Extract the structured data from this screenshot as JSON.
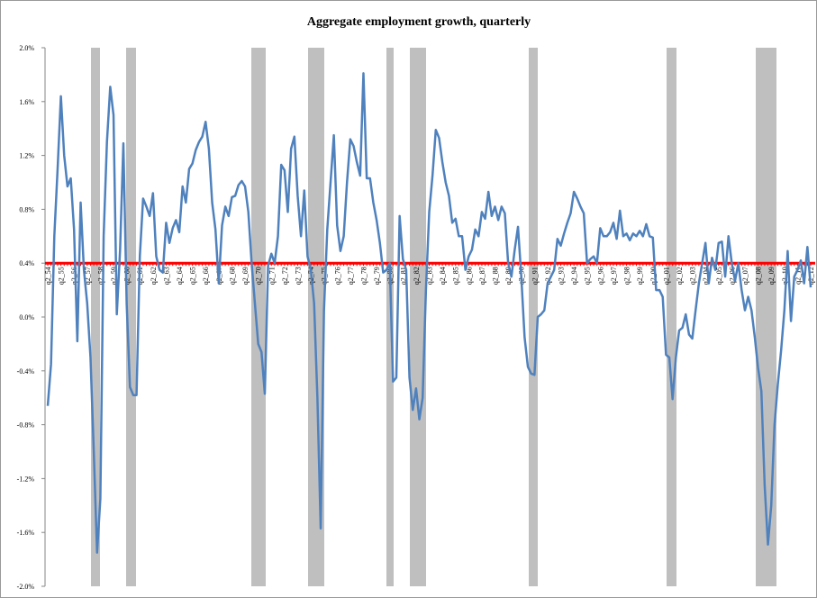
{
  "chart_data": {
    "type": "line",
    "title": "Aggregate employment growth, quarterly",
    "color": "#4f81bd",
    "reference_line": 0.4,
    "reference_color": "#ff0000",
    "ylim": [
      -2.0,
      2.0
    ],
    "yticks": [
      {
        "value": -2.0,
        "label": "-2.0%"
      },
      {
        "value": -1.6,
        "label": "-1.6%"
      },
      {
        "value": -1.2,
        "label": "-1.2%"
      },
      {
        "value": -0.8,
        "label": "-0.8%"
      },
      {
        "value": -0.4,
        "label": "-0.4%"
      },
      {
        "value": 0.0,
        "label": "0.0%"
      },
      {
        "value": 0.4,
        "label": "0.4%"
      },
      {
        "value": 0.8,
        "label": "0.8%"
      },
      {
        "value": 1.2,
        "label": "1.2%"
      },
      {
        "value": 1.6,
        "label": "1.6%"
      },
      {
        "value": 2.0,
        "label": "2.0%"
      }
    ],
    "categories": [
      "q2_54",
      null,
      null,
      null,
      "q2_55",
      null,
      null,
      null,
      "q2_56",
      null,
      null,
      null,
      "q2_57",
      null,
      null,
      null,
      "q2_58",
      null,
      null,
      null,
      "q2_59",
      null,
      null,
      null,
      "q2_60",
      null,
      null,
      null,
      "q2_61",
      null,
      null,
      null,
      "q2_62",
      null,
      null,
      null,
      "q2_63",
      null,
      null,
      null,
      "q2_64",
      null,
      null,
      null,
      "q2_65",
      null,
      null,
      null,
      "q2_66",
      null,
      null,
      null,
      "q2_67",
      null,
      null,
      null,
      "q2_68",
      null,
      null,
      null,
      "q2_69",
      null,
      null,
      null,
      "q2_70",
      null,
      null,
      null,
      "q2_71",
      null,
      null,
      null,
      "q2_72",
      null,
      null,
      null,
      "q2_73",
      null,
      null,
      null,
      "q2_74",
      null,
      null,
      null,
      "q2_75",
      null,
      null,
      null,
      "q2_76",
      null,
      null,
      null,
      "q2_77",
      null,
      null,
      null,
      "q2_78",
      null,
      null,
      null,
      "q2_79",
      null,
      null,
      null,
      "q2_80",
      null,
      null,
      null,
      "q2_81",
      null,
      null,
      null,
      "q2_82",
      null,
      null,
      null,
      "q2_83",
      null,
      null,
      null,
      "q2_84",
      null,
      null,
      null,
      "q2_85",
      null,
      null,
      null,
      "q2_86",
      null,
      null,
      null,
      "q2_87",
      null,
      null,
      null,
      "q2_88",
      null,
      null,
      null,
      "q2_89",
      null,
      null,
      null,
      "q2_90",
      null,
      null,
      null,
      "q2_91",
      null,
      null,
      null,
      "q2_92",
      null,
      null,
      null,
      "q2_93",
      null,
      null,
      null,
      "q2_94",
      null,
      null,
      null,
      "q2_95",
      null,
      null,
      null,
      "q2_96",
      null,
      null,
      null,
      "q2_97",
      null,
      null,
      null,
      "q2_98",
      null,
      null,
      null,
      "q2_99",
      null,
      null,
      null,
      "q2_00",
      null,
      null,
      null,
      "q2_01",
      null,
      null,
      null,
      "q2_02",
      null,
      null,
      null,
      "q2_03",
      null,
      null,
      null,
      "q2_04",
      null,
      null,
      null,
      "q2_05",
      null,
      null,
      null,
      "q2_06",
      null,
      null,
      null,
      "q2_07",
      null,
      null,
      null,
      "q2_08",
      null,
      null,
      null,
      "q2_09",
      null,
      null,
      null,
      "q2_10",
      null,
      null,
      null,
      "q2_11",
      null,
      null,
      null,
      "q2_12"
    ],
    "values": [
      -0.66,
      -0.35,
      0.6,
      1.1,
      1.64,
      1.2,
      0.97,
      1.03,
      0.65,
      -0.18,
      0.85,
      0.35,
      0.1,
      -0.3,
      -1.0,
      -1.75,
      -1.35,
      0.6,
      1.3,
      1.71,
      1.5,
      0.02,
      0.5,
      1.29,
      0.1,
      -0.52,
      -0.58,
      -0.58,
      0.45,
      0.88,
      0.82,
      0.75,
      0.92,
      0.45,
      0.35,
      0.33,
      0.7,
      0.55,
      0.66,
      0.72,
      0.63,
      0.97,
      0.85,
      1.1,
      1.14,
      1.24,
      1.3,
      1.34,
      1.45,
      1.25,
      0.85,
      0.65,
      0.25,
      0.68,
      0.82,
      0.75,
      0.89,
      0.9,
      0.98,
      1.01,
      0.97,
      0.78,
      0.4,
      0.1,
      -0.2,
      -0.26,
      -0.57,
      0.38,
      0.47,
      0.4,
      0.6,
      1.13,
      1.09,
      0.78,
      1.25,
      1.34,
      0.9,
      0.6,
      0.94,
      0.45,
      0.35,
      0.1,
      -0.6,
      -1.57,
      0.05,
      0.65,
      1.0,
      1.35,
      0.68,
      0.49,
      0.6,
      1.0,
      1.32,
      1.27,
      1.15,
      1.05,
      1.81,
      1.03,
      1.03,
      0.85,
      0.72,
      0.55,
      0.33,
      0.35,
      0.4,
      -0.48,
      -0.45,
      0.75,
      0.43,
      0.35,
      -0.45,
      -0.69,
      -0.53,
      -0.76,
      -0.6,
      0.2,
      0.78,
      1.05,
      1.39,
      1.33,
      1.15,
      1.0,
      0.9,
      0.7,
      0.73,
      0.6,
      0.6,
      0.35,
      0.45,
      0.5,
      0.65,
      0.6,
      0.78,
      0.73,
      0.93,
      0.75,
      0.82,
      0.72,
      0.82,
      0.77,
      0.4,
      0.3,
      0.5,
      0.67,
      0.3,
      -0.15,
      -0.37,
      -0.42,
      -0.43,
      0.0,
      0.02,
      0.05,
      0.25,
      0.3,
      0.35,
      0.58,
      0.53,
      0.62,
      0.7,
      0.77,
      0.93,
      0.88,
      0.82,
      0.77,
      0.4,
      0.43,
      0.45,
      0.4,
      0.66,
      0.6,
      0.6,
      0.63,
      0.7,
      0.58,
      0.79,
      0.6,
      0.62,
      0.57,
      0.62,
      0.6,
      0.64,
      0.6,
      0.69,
      0.6,
      0.59,
      0.2,
      0.2,
      0.15,
      -0.28,
      -0.3,
      -0.61,
      -0.3,
      -0.1,
      -0.08,
      0.02,
      -0.13,
      -0.16,
      0.05,
      0.25,
      0.4,
      0.55,
      0.25,
      0.44,
      0.35,
      0.55,
      0.56,
      0.3,
      0.6,
      0.4,
      0.27,
      0.4,
      0.2,
      0.05,
      0.15,
      0.05,
      -0.15,
      -0.38,
      -0.55,
      -1.25,
      -1.69,
      -1.4,
      -0.8,
      -0.5,
      -0.25,
      0.05,
      0.49,
      -0.03,
      0.3,
      0.35,
      0.42,
      0.25,
      0.52,
      0.22
    ]
  }
}
